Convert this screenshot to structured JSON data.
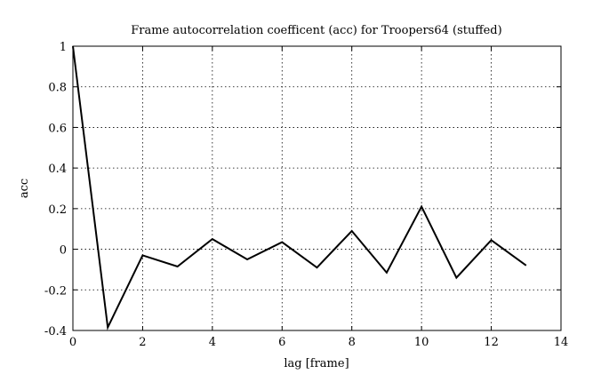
{
  "chart_data": {
    "type": "line",
    "title": "Frame autocorrelation coefficent (acc) for Troopers64 (stuffed)",
    "xlabel": "lag [frame]",
    "ylabel": "acc",
    "xlim": [
      0,
      14
    ],
    "ylim": [
      -0.4,
      1
    ],
    "xticks": [
      0,
      2,
      4,
      6,
      8,
      10,
      12,
      14
    ],
    "yticks": [
      -0.4,
      -0.2,
      0,
      0.2,
      0.4,
      0.6,
      0.8,
      1
    ],
    "xtick_labels": [
      "0",
      "2",
      "4",
      "6",
      "8",
      "10",
      "12",
      "14"
    ],
    "ytick_labels": [
      "-0.4",
      "-0.2",
      "0",
      "0.2",
      "0.4",
      "0.6",
      "0.8",
      "1"
    ],
    "grid": true,
    "series": [
      {
        "color": "#000000",
        "x": [
          0,
          1,
          2,
          3,
          4,
          5,
          6,
          7,
          8,
          9,
          10,
          11,
          12,
          13
        ],
        "y": [
          1.0,
          -0.385,
          -0.03,
          -0.085,
          0.05,
          -0.05,
          0.035,
          -0.09,
          0.09,
          -0.115,
          0.21,
          -0.14,
          0.045,
          -0.08
        ]
      }
    ]
  }
}
